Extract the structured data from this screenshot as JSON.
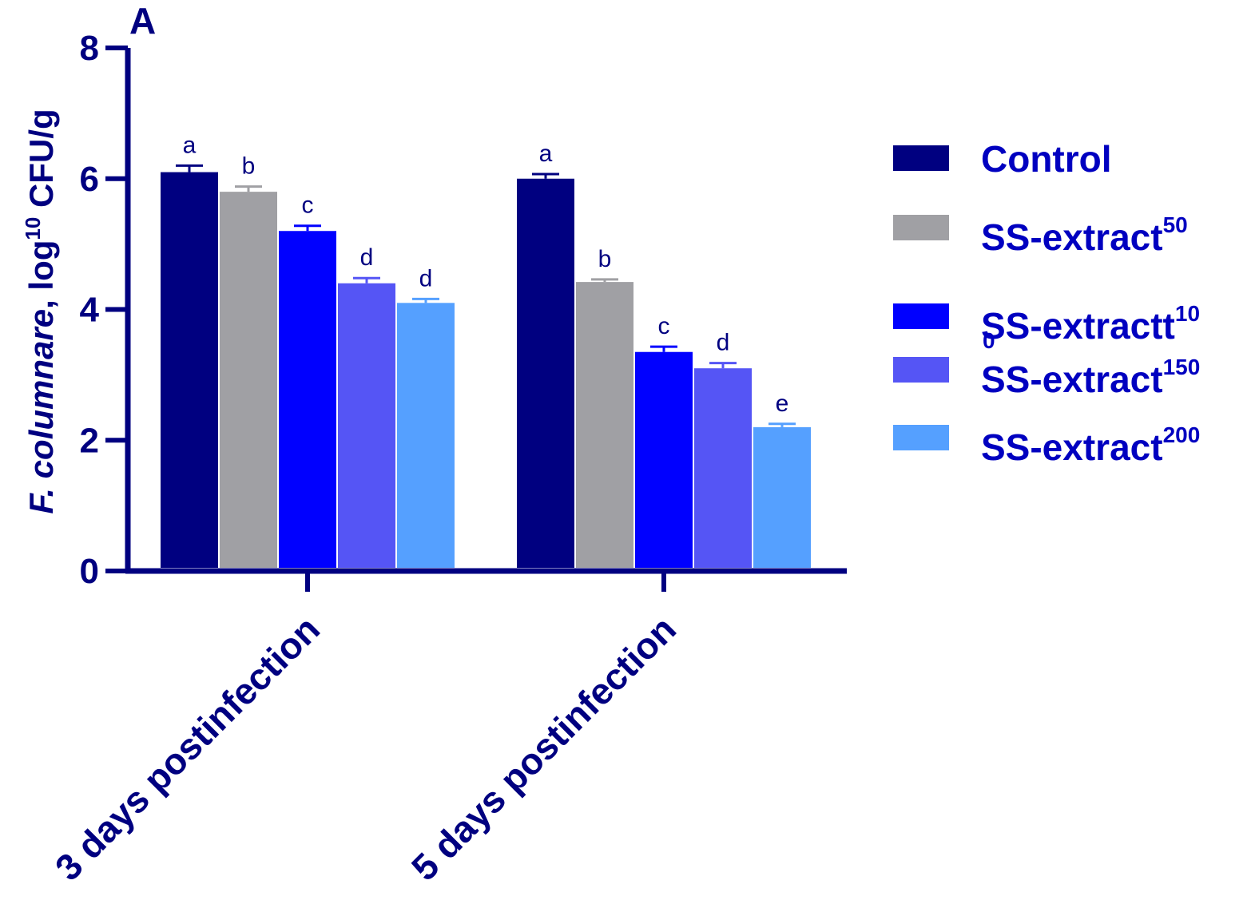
{
  "panel_label": "A",
  "chart_data": {
    "type": "bar",
    "title": "",
    "xlabel": "",
    "ylabel": {
      "italic_part": "F. columnare",
      "rest": ", log",
      "superscript": "10",
      "unit": " CFU/g"
    },
    "ylim": [
      0,
      8
    ],
    "yticks": [
      "0",
      "2",
      "4",
      "6",
      "8"
    ],
    "categories": [
      "3 days postinfection",
      "5 days postinfection"
    ],
    "series": [
      {
        "name": "Control",
        "sup": "",
        "color": "#000080",
        "values": [
          6.1,
          6.0
        ],
        "errors": [
          0.1,
          0.07
        ],
        "letters": [
          "a",
          "a"
        ]
      },
      {
        "name": "SS-extract",
        "sup": "50",
        "color": "#a0a0a4",
        "values": [
          5.8,
          4.42
        ],
        "errors": [
          0.08,
          0.04
        ],
        "letters": [
          "b",
          "b"
        ]
      },
      {
        "name": "SS-extractt",
        "sup": "10",
        "sup_wrap": "0",
        "color": "#0000ff",
        "values": [
          5.2,
          3.35
        ],
        "errors": [
          0.08,
          0.08
        ],
        "letters": [
          "c",
          "c"
        ]
      },
      {
        "name": "SS-extract",
        "sup": "150",
        "color": "#5555f5",
        "values": [
          4.4,
          3.1
        ],
        "errors": [
          0.08,
          0.08
        ],
        "letters": [
          "d",
          "d"
        ]
      },
      {
        "name": "SS-extract",
        "sup": "200",
        "color": "#55a0ff",
        "values": [
          4.1,
          2.2
        ],
        "errors": [
          0.06,
          0.05
        ],
        "letters": [
          "d",
          "e"
        ]
      }
    ],
    "legend_position": "right",
    "axis_color": "#000080",
    "label_color": "#0000c0"
  }
}
